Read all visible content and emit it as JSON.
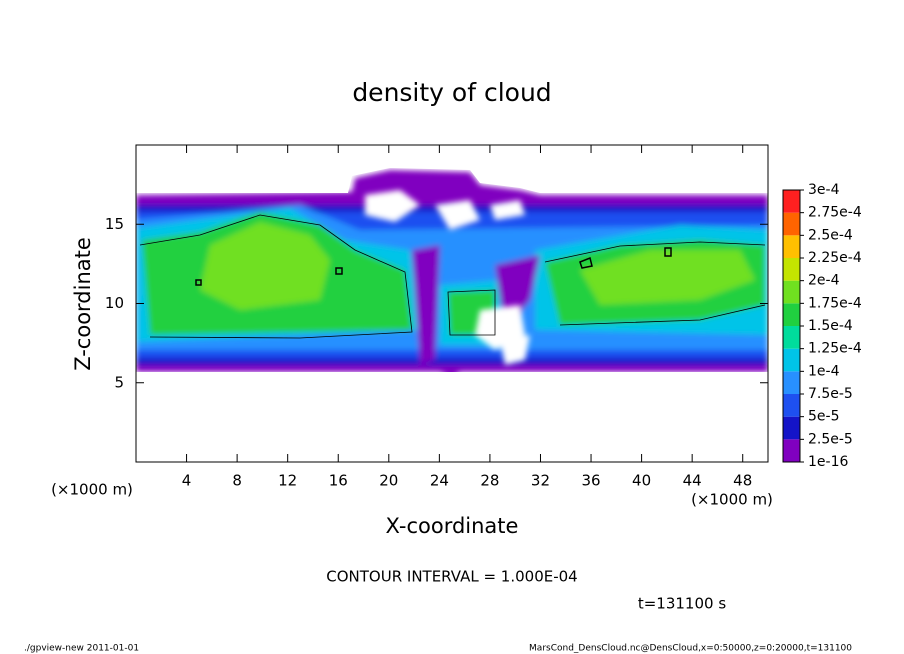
{
  "chart_data": {
    "type": "contour",
    "title": "density of cloud",
    "xlabel": "X-coordinate",
    "ylabel": "Z-coordinate",
    "xunit": "(×1000 m)",
    "yunit": "(×1000 m)",
    "xlim": [
      0,
      50
    ],
    "ylim": [
      0,
      20
    ],
    "xticks": [
      4,
      8,
      12,
      16,
      20,
      24,
      28,
      32,
      36,
      40,
      44,
      48
    ],
    "yticks": [
      5,
      10,
      15
    ],
    "colorbar": {
      "levels": [
        1e-16,
        {
          "value": 2.5e-05,
          "label": "2.5e-5"
        },
        {
          "value": 5e-05,
          "label": "5e-5"
        },
        {
          "value": 7.5e-05,
          "label": "7.5e-5"
        },
        {
          "value": 0.0001,
          "label": "1e-4"
        },
        {
          "value": 0.000125,
          "label": "1.25e-4"
        },
        {
          "value": 0.00015,
          "label": "1.5e-4"
        },
        {
          "value": 0.000175,
          "label": "1.75e-4"
        },
        {
          "value": 0.0002,
          "label": "2e-4"
        },
        {
          "value": 0.000225,
          "label": "2.25e-4"
        },
        {
          "value": 0.00025,
          "label": "2.5e-4"
        },
        {
          "value": 0.000275,
          "label": "2.75e-4"
        },
        {
          "value": 0.0003,
          "label": "3e-4"
        }
      ],
      "colors": [
        "#8000c0",
        "#1414c8",
        "#1e50f0",
        "#2890ff",
        "#00c4e8",
        "#00dc9c",
        "#20d040",
        "#70e020",
        "#c4e400",
        "#ffc000",
        "#ff6400",
        "#ff2020",
        "#ff8a8a"
      ]
    },
    "contour_interval": "CONTOUR INTERVAL = 1.000E-04",
    "time_label": "t=131100 s",
    "footer_left": "./gpview-new  2011-01-01",
    "footer_right": "MarsCond_DensCloud.nc@DensCloud,x=0:50000,z=0:20000,t=131100"
  }
}
